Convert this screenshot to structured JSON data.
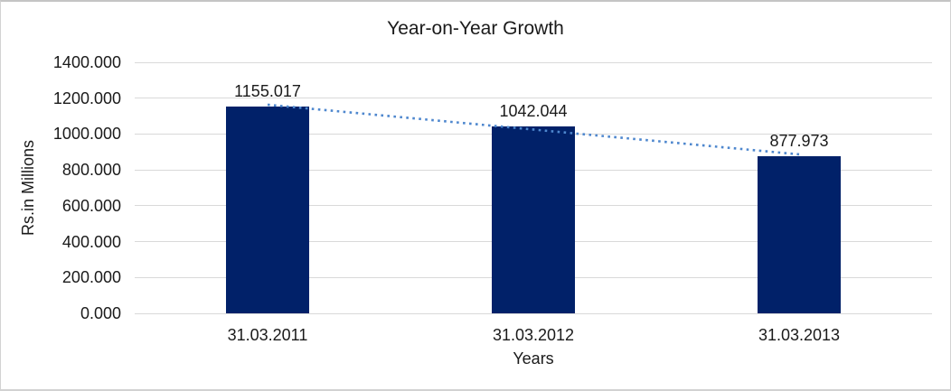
{
  "chart_data": {
    "type": "bar",
    "title": "Year-on-Year Growth",
    "xlabel": "Years",
    "ylabel": "Rs.in Millions",
    "categories": [
      "31.03.2011",
      "31.03.2012",
      "31.03.2013"
    ],
    "values": [
      1155.017,
      1042.044,
      877.973
    ],
    "value_labels": [
      "1155.017",
      "1042.044",
      "877.973"
    ],
    "ylim": [
      0,
      1400
    ],
    "y_tick_step": 200,
    "y_tick_labels": [
      "0.000",
      "200.000",
      "400.000",
      "600.000",
      "800.000",
      "1000.000",
      "1200.000",
      "1400.000"
    ],
    "grid": "horizontal",
    "legend": "none",
    "trendline": {
      "style": "dotted",
      "type": "linear",
      "color": "#4e87ce"
    },
    "colors": {
      "bar": "#012169",
      "gridline": "#d9d9d9",
      "text": "#1a1a1a"
    }
  }
}
